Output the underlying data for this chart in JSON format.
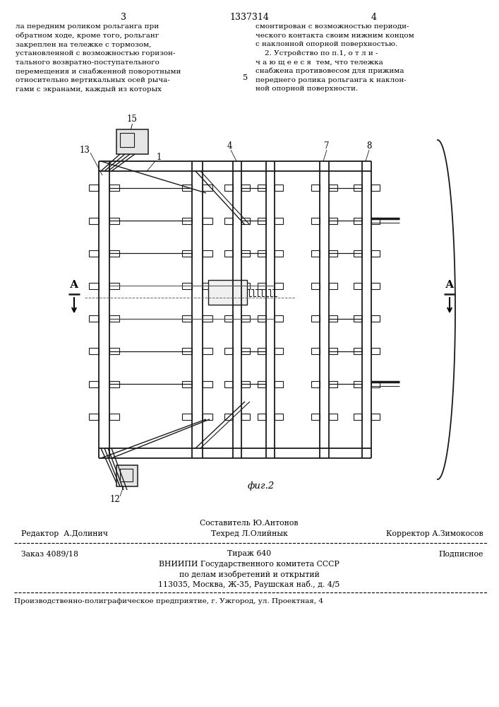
{
  "page_number_left": "3",
  "patent_number": "1337314",
  "page_number_right": "4",
  "text_left": "ла передним роликом рольганга при\nобратном ходе, кроме того, рольганг\nзакреплен на тележке с тормозом,\nустановленной с возможностью горизон-\nтального возвратно-поступательного\nперемещения и снабженной поворотными\nотносительно вертикальных осей рыча-\nгами с экранами, каждый из которых",
  "text_right": "смонтирован с возможностью периоди-\nческого контакта своим нижним концом\nс наклонной опорной поверхностью.\n    2. Устройство по п.1, о т л и -\nч а ю щ е е с я  тем, что тележка\nснабжена противовесом для прижима\nпереднего ролика рольганга к наклон-\nной опорной поверхности.",
  "fig_label": "фиг.2",
  "arrow_label": "А",
  "label_5": "5",
  "footer_editor": "Редактор  А.Долинич",
  "footer_composer": "Составитель Ю.Антонов",
  "footer_corrector": "Корректор А.Зимокосов",
  "footer_tech": "Техред Л.Олийнык",
  "footer_order": "Заказ 4089/18",
  "footer_circulation": "Тираж 640",
  "footer_subscription": "Подписное",
  "footer_org": "ВНИИПИ Государственного комитета СССР",
  "footer_org2": "по делам изобретений и открытий",
  "footer_address": "113035, Москва, Ж-35, Раушская наб., д. 4/5",
  "footer_printer": "Производственно-полиграфическое предприятие, г. Ужгород, ул. Проектная, 4",
  "bg_color": "#ffffff",
  "text_color": "#000000",
  "line_color": "#000000",
  "draw_color": "#1a1a1a"
}
